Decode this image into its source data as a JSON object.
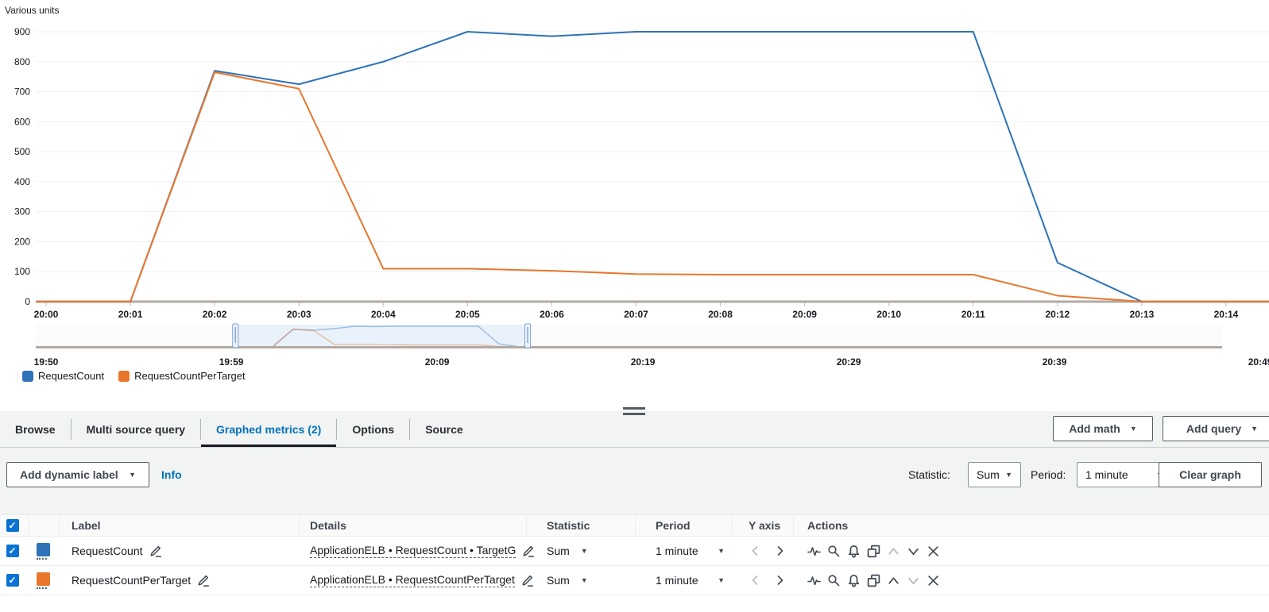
{
  "chart": {
    "units_label": "Various units",
    "legend": [
      {
        "label": "RequestCount",
        "color": "#2e73b8"
      },
      {
        "label": "RequestCountPerTarget",
        "color": "#e8772c"
      }
    ]
  },
  "chart_data": {
    "type": "line",
    "title": "Various units",
    "x": [
      "20:00",
      "20:01",
      "20:02",
      "20:03",
      "20:04",
      "20:05",
      "20:06",
      "20:07",
      "20:08",
      "20:09",
      "20:10",
      "20:11",
      "20:12",
      "20:13",
      "20:14"
    ],
    "series": [
      {
        "name": "RequestCount",
        "color": "#2e73b8",
        "values": [
          0,
          0,
          770,
          725,
          800,
          900,
          885,
          900,
          900,
          900,
          900,
          900,
          130,
          0,
          0
        ]
      },
      {
        "name": "RequestCountPerTarget",
        "color": "#e8772c",
        "values": [
          0,
          0,
          765,
          710,
          110,
          110,
          103,
          92,
          90,
          90,
          90,
          90,
          20,
          0,
          0
        ]
      }
    ],
    "ylim": [
      0,
      900
    ],
    "y_ticks": [
      0,
      100,
      200,
      300,
      400,
      500,
      600,
      700,
      800,
      900
    ],
    "grid": "horizontal",
    "legend_position": "bottom-left"
  },
  "timeline": {
    "ticks": [
      "19:50",
      "19:59",
      "20:09",
      "20:19",
      "20:29",
      "20:39",
      "20:49"
    ],
    "tick_offsets_min": [
      0,
      9,
      19,
      29,
      39,
      49,
      59
    ],
    "brush_start_offset_min": 9.2,
    "brush_end_offset_min": 23.4
  },
  "panel": {
    "tabs": [
      {
        "label": "Browse",
        "active": false
      },
      {
        "label": "Multi source query",
        "active": false
      },
      {
        "label": "Graphed metrics (2)",
        "active": true
      },
      {
        "label": "Options",
        "active": false
      },
      {
        "label": "Source",
        "active": false
      }
    ],
    "add_math_label": "Add math",
    "add_query_label": "Add query",
    "add_dynamic_label": "Add dynamic label",
    "info_label": "Info",
    "statistic_label": "Statistic:",
    "statistic_value": "Sum",
    "period_label": "Period:",
    "period_value": "1 minute",
    "clear_graph_label": "Clear graph"
  },
  "table": {
    "columns": [
      "Label",
      "Details",
      "Statistic",
      "Period",
      "Y axis",
      "Actions"
    ],
    "rows": [
      {
        "checked": true,
        "color": "#2e73b8",
        "label": "RequestCount",
        "details": "ApplicationELB • RequestCount • TargetG",
        "statistic": "Sum",
        "period": "1 minute"
      },
      {
        "checked": true,
        "color": "#e8772c",
        "label": "RequestCountPerTarget",
        "details": "ApplicationELB • RequestCountPerTarget",
        "statistic": "Sum",
        "period": "1 minute"
      }
    ],
    "action_icons": [
      "pulse-icon",
      "zoom-icon",
      "alarm-icon",
      "duplicate-icon",
      "move-up-icon",
      "move-down-icon",
      "remove-icon"
    ]
  }
}
